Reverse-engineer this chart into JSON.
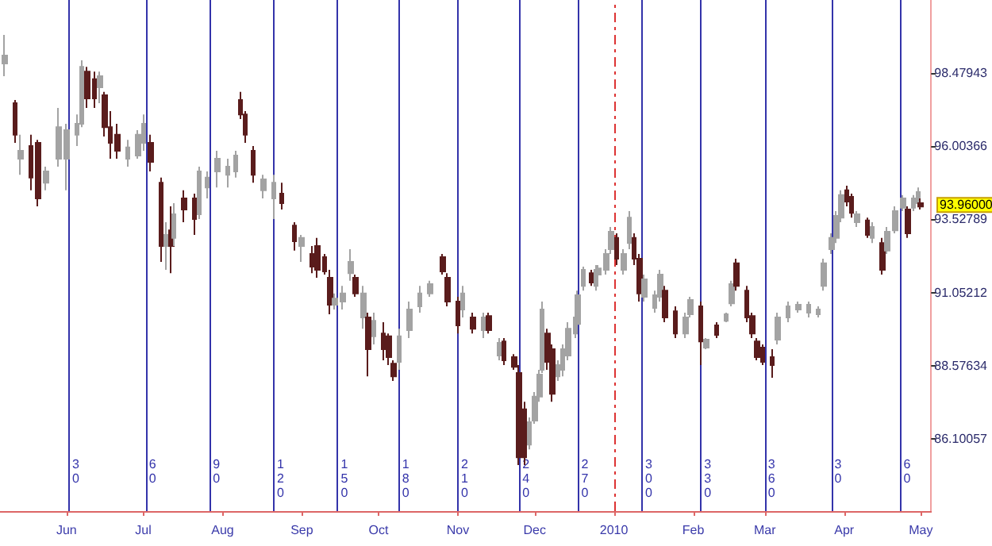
{
  "chart_data": {
    "type": "candlestick",
    "x": [
      "2009-05-08",
      "2009-05-12",
      "2009-05-14",
      "2009-05-18",
      "2009-05-21",
      "2009-05-24",
      "2009-05-29",
      "2009-06-01",
      "2009-06-05",
      "2009-06-07",
      "2009-06-09",
      "2009-06-12",
      "2009-06-14",
      "2009-06-16",
      "2009-06-18",
      "2009-06-21",
      "2009-06-25",
      "2009-06-29",
      "2009-07-01",
      "2009-07-04",
      "2009-07-08",
      "2009-07-10",
      "2009-07-12",
      "2009-07-13",
      "2009-07-17",
      "2009-07-21",
      "2009-07-23",
      "2009-07-26",
      "2009-07-30",
      "2009-08-03",
      "2009-08-06",
      "2009-08-08",
      "2009-08-10",
      "2009-08-13",
      "2009-08-17",
      "2009-08-21",
      "2009-08-24",
      "2009-08-29",
      "2009-09-01",
      "2009-09-05",
      "2009-09-07",
      "2009-09-10",
      "2009-09-12",
      "2009-09-14",
      "2009-09-17",
      "2009-09-20",
      "2009-09-22",
      "2009-09-25",
      "2009-09-27",
      "2009-09-29",
      "2009-10-03",
      "2009-10-05",
      "2009-10-07",
      "2009-10-09",
      "2009-10-13",
      "2009-10-17",
      "2009-10-21",
      "2009-10-26",
      "2009-10-28",
      "2009-11-01",
      "2009-11-03",
      "2009-11-07",
      "2009-11-11",
      "2009-11-13",
      "2009-11-17",
      "2009-11-19",
      "2009-11-23",
      "2009-11-25",
      "2009-11-27",
      "2009-11-29",
      "2009-12-01",
      "2009-12-03",
      "2009-12-04",
      "2009-12-06",
      "2009-12-08",
      "2009-12-10",
      "2009-12-12",
      "2009-12-14",
      "2009-12-17",
      "2009-12-18",
      "2009-12-20",
      "2009-12-23",
      "2009-12-25",
      "2009-12-26",
      "2009-12-29",
      "2009-12-31",
      "2010-01-02",
      "2010-01-05",
      "2010-01-07",
      "2010-01-09",
      "2010-01-11",
      "2010-01-13",
      "2010-01-17",
      "2010-01-19",
      "2010-01-21",
      "2010-01-25",
      "2010-01-29",
      "2010-01-31",
      "2010-02-04",
      "2010-02-06",
      "2010-02-10",
      "2010-02-14",
      "2010-02-16",
      "2010-02-18",
      "2010-02-22",
      "2010-02-24",
      "2010-02-26",
      "2010-02-28",
      "2010-03-04",
      "2010-03-06",
      "2010-03-10",
      "2010-03-14",
      "2010-03-18",
      "2010-03-22",
      "2010-03-24",
      "2010-03-27",
      "2010-03-29",
      "2010-03-31",
      "2010-04-02",
      "2010-04-04",
      "2010-04-06",
      "2010-04-10",
      "2010-04-12",
      "2010-04-16",
      "2010-04-18",
      "2010-04-21",
      "2010-04-24",
      "2010-04-26",
      "2010-04-28",
      "2010-04-30",
      "2010-05-01"
    ],
    "ohlc": [
      [
        98.8,
        99.77,
        98.37,
        99.07
      ],
      [
        97.46,
        97.57,
        96.12,
        96.39
      ],
      [
        95.58,
        96.39,
        95.04,
        95.85
      ],
      [
        96.01,
        96.39,
        94.51,
        94.94
      ],
      [
        96.12,
        96.22,
        93.97,
        94.24
      ],
      [
        94.77,
        95.31,
        94.51,
        95.15
      ],
      [
        95.58,
        97.3,
        95.31,
        96.65
      ],
      [
        95.58,
        96.76,
        94.51,
        96.55
      ],
      [
        96.39,
        97.08,
        96.01,
        96.76
      ],
      [
        96.76,
        98.91,
        96.65,
        98.69
      ],
      [
        98.53,
        98.69,
        97.3,
        97.62
      ],
      [
        98.27,
        98.53,
        97.3,
        97.62
      ],
      [
        98.0,
        98.53,
        97.46,
        98.37
      ],
      [
        97.73,
        97.84,
        96.33,
        96.65
      ],
      [
        96.65,
        97.19,
        95.58,
        96.12
      ],
      [
        96.39,
        96.76,
        95.58,
        95.85
      ],
      [
        95.58,
        96.22,
        95.31,
        95.96
      ],
      [
        95.69,
        96.55,
        95.58,
        96.39
      ],
      [
        96.12,
        97.08,
        95.85,
        96.76
      ],
      [
        96.12,
        96.39,
        95.15,
        95.47
      ],
      [
        94.77,
        94.94,
        92.09,
        92.63
      ],
      [
        92.63,
        93.43,
        91.82,
        93.0
      ],
      [
        93.16,
        93.97,
        91.71,
        92.63
      ],
      [
        92.9,
        94.08,
        92.63,
        93.7
      ],
      [
        94.24,
        94.51,
        93.43,
        93.86
      ],
      [
        94.24,
        94.4,
        93.0,
        93.54
      ],
      [
        93.7,
        95.31,
        93.54,
        95.15
      ],
      [
        94.61,
        95.15,
        94.24,
        94.94
      ],
      [
        95.15,
        95.85,
        94.61,
        95.58
      ],
      [
        95.04,
        95.58,
        94.61,
        95.31
      ],
      [
        95.15,
        95.85,
        94.94,
        95.69
      ],
      [
        97.57,
        97.84,
        96.92,
        97.08
      ],
      [
        97.08,
        97.19,
        96.12,
        96.39
      ],
      [
        95.85,
        96.01,
        94.77,
        95.04
      ],
      [
        94.51,
        95.04,
        94.24,
        94.88
      ],
      [
        94.24,
        95.04,
        93.54,
        94.77
      ],
      [
        94.4,
        94.77,
        93.86,
        94.08
      ],
      [
        93.32,
        93.43,
        92.47,
        92.79
      ],
      [
        92.63,
        93.0,
        92.09,
        92.9
      ],
      [
        92.36,
        92.63,
        91.71,
        91.93
      ],
      [
        92.63,
        92.9,
        91.55,
        91.82
      ],
      [
        92.25,
        92.36,
        91.66,
        91.77
      ],
      [
        91.55,
        91.82,
        90.32,
        90.64
      ],
      [
        90.64,
        91.02,
        90.48,
        90.85
      ],
      [
        90.75,
        91.28,
        90.48,
        91.02
      ],
      [
        91.71,
        92.52,
        91.45,
        92.09
      ],
      [
        91.55,
        91.66,
        90.91,
        91.02
      ],
      [
        90.21,
        91.28,
        89.83,
        91.02
      ],
      [
        90.21,
        90.37,
        88.22,
        89.14
      ],
      [
        89.57,
        90.37,
        89.3,
        90.1
      ],
      [
        89.67,
        90.05,
        88.76,
        89.14
      ],
      [
        89.57,
        89.67,
        88.6,
        88.87
      ],
      [
        88.65,
        88.76,
        88.06,
        88.22
      ],
      [
        88.71,
        89.83,
        88.44,
        89.57
      ],
      [
        89.78,
        90.75,
        89.51,
        90.48
      ],
      [
        90.59,
        91.28,
        90.37,
        91.02
      ],
      [
        91.02,
        91.45,
        90.91,
        91.34
      ],
      [
        92.25,
        92.36,
        91.66,
        91.77
      ],
      [
        91.55,
        91.71,
        90.59,
        90.75
      ],
      [
        90.75,
        90.91,
        89.67,
        89.94
      ],
      [
        90.48,
        91.28,
        90.21,
        91.02
      ],
      [
        90.21,
        90.37,
        89.67,
        89.83
      ],
      [
        89.78,
        90.37,
        89.51,
        90.21
      ],
      [
        90.26,
        90.37,
        89.67,
        89.78
      ],
      [
        88.92,
        89.51,
        88.76,
        89.35
      ],
      [
        89.4,
        89.51,
        88.6,
        88.76
      ],
      [
        88.87,
        88.97,
        88.44,
        88.54
      ],
      [
        88.33,
        88.6,
        85.22,
        85.48
      ],
      [
        87.1,
        87.36,
        85.22,
        85.48
      ],
      [
        85.91,
        86.83,
        85.75,
        86.67
      ],
      [
        86.72,
        87.69,
        86.61,
        87.53
      ],
      [
        87.53,
        88.44,
        87.36,
        88.28
      ],
      [
        88.44,
        90.75,
        88.33,
        90.48
      ],
      [
        89.67,
        89.83,
        88.44,
        88.71
      ],
      [
        89.14,
        89.3,
        87.36,
        87.63
      ],
      [
        88.22,
        88.76,
        88.06,
        88.6
      ],
      [
        88.44,
        89.3,
        88.22,
        89.14
      ],
      [
        88.92,
        90.05,
        88.76,
        89.83
      ],
      [
        89.67,
        90.37,
        89.51,
        90.21
      ],
      [
        89.99,
        91.12,
        89.83,
        90.96
      ],
      [
        91.28,
        91.93,
        91.12,
        91.82
      ],
      [
        91.71,
        91.82,
        91.28,
        91.39
      ],
      [
        91.28,
        91.98,
        91.12,
        91.82
      ],
      [
        91.66,
        91.98,
        91.55,
        91.87
      ],
      [
        91.82,
        92.52,
        91.66,
        92.36
      ],
      [
        92.52,
        93.27,
        92.36,
        93.11
      ],
      [
        92.9,
        93.06,
        91.98,
        92.2
      ],
      [
        91.82,
        92.52,
        91.66,
        92.36
      ],
      [
        92.73,
        93.81,
        92.52,
        93.59
      ],
      [
        92.9,
        93.06,
        91.98,
        92.2
      ],
      [
        92.2,
        92.36,
        90.75,
        91.02
      ],
      [
        90.91,
        91.66,
        90.75,
        91.5
      ],
      [
        90.53,
        91.12,
        90.37,
        90.96
      ],
      [
        90.91,
        91.82,
        90.75,
        91.66
      ],
      [
        91.12,
        91.28,
        90.05,
        90.21
      ],
      [
        90.42,
        90.59,
        89.51,
        89.67
      ],
      [
        89.67,
        90.37,
        89.51,
        90.21
      ],
      [
        90.32,
        90.91,
        90.21,
        90.8
      ],
      [
        90.59,
        90.75,
        88.6,
        89.4
      ],
      [
        89.19,
        89.51,
        89.14,
        89.46
      ],
      [
        89.94,
        90.05,
        89.51,
        89.62
      ],
      [
        90.1,
        90.37,
        90.05,
        90.32
      ],
      [
        90.69,
        91.45,
        90.59,
        91.34
      ],
      [
        92.04,
        92.2,
        91.12,
        91.28
      ],
      [
        91.12,
        91.28,
        90.05,
        90.21
      ],
      [
        90.26,
        90.37,
        89.51,
        89.67
      ],
      [
        89.4,
        89.51,
        88.76,
        88.87
      ],
      [
        89.19,
        89.3,
        88.6,
        88.71
      ],
      [
        88.87,
        89.14,
        88.17,
        88.6
      ],
      [
        89.46,
        90.37,
        89.3,
        90.21
      ],
      [
        90.21,
        90.75,
        90.05,
        90.59
      ],
      [
        90.48,
        90.75,
        90.37,
        90.64
      ],
      [
        90.37,
        90.75,
        90.21,
        90.64
      ],
      [
        90.32,
        90.59,
        90.21,
        90.48
      ],
      [
        91.28,
        92.2,
        91.12,
        92.04
      ],
      [
        92.52,
        93.06,
        92.36,
        92.9
      ],
      [
        92.9,
        93.81,
        92.73,
        93.65
      ],
      [
        93.59,
        94.51,
        93.43,
        94.35
      ],
      [
        94.51,
        94.67,
        93.97,
        94.13
      ],
      [
        94.29,
        94.4,
        93.59,
        93.75
      ],
      [
        93.43,
        93.81,
        93.27,
        93.7
      ],
      [
        93.49,
        93.59,
        92.9,
        93.0
      ],
      [
        92.9,
        93.43,
        92.73,
        93.27
      ],
      [
        92.73,
        92.9,
        91.66,
        91.82
      ],
      [
        92.47,
        93.27,
        92.36,
        93.11
      ],
      [
        93.16,
        93.97,
        93.06,
        93.81
      ],
      [
        93.92,
        94.35,
        93.81,
        94.24
      ],
      [
        93.86,
        93.97,
        92.9,
        93.06
      ],
      [
        93.92,
        94.35,
        93.81,
        94.24
      ],
      [
        94.08,
        94.61,
        93.97,
        94.45
      ],
      [
        94.08,
        94.24,
        93.86,
        93.96
      ]
    ],
    "xlim": [
      "2009-05-06",
      "2010-05-05"
    ],
    "xticks": [
      {
        "value": "2009-06-01",
        "label": "Jun"
      },
      {
        "value": "2009-07-01",
        "label": "Jul"
      },
      {
        "value": "2009-08-01",
        "label": "Aug"
      },
      {
        "value": "2009-09-01",
        "label": "Sep"
      },
      {
        "value": "2009-10-01",
        "label": "Oct"
      },
      {
        "value": "2009-11-01",
        "label": "Nov"
      },
      {
        "value": "2009-12-01",
        "label": "Dec"
      },
      {
        "value": "2010-01-01",
        "label": "2010"
      },
      {
        "value": "2010-02-01",
        "label": "Feb"
      },
      {
        "value": "2010-03-01",
        "label": "Mar"
      },
      {
        "value": "2010-04-01",
        "label": "Apr"
      },
      {
        "value": "2010-05-01",
        "label": "May"
      }
    ],
    "ylim": [
      83.66,
      100.95
    ],
    "yticks": [
      {
        "value": 86.10057,
        "label": "86.10057"
      },
      {
        "value": 88.57634,
        "label": "88.57634"
      },
      {
        "value": 91.05212,
        "label": "91.05212"
      },
      {
        "value": 93.52789,
        "label": "93.52789"
      },
      {
        "value": 96.00366,
        "label": "96.00366"
      },
      {
        "value": 98.47943,
        "label": "98.47943"
      }
    ],
    "ref_lines": [
      {
        "axis": "x",
        "value": "2009-06-02",
        "label": "30",
        "color": "#3333aa"
      },
      {
        "axis": "x",
        "value": "2009-07-02",
        "label": "60",
        "color": "#3333aa"
      },
      {
        "axis": "x",
        "value": "2009-07-27",
        "label": "90",
        "color": "#3333aa"
      },
      {
        "axis": "x",
        "value": "2009-08-21",
        "label": "120",
        "color": "#3333aa"
      },
      {
        "axis": "x",
        "value": "2009-09-15",
        "label": "150",
        "color": "#3333aa"
      },
      {
        "axis": "x",
        "value": "2009-10-09",
        "label": "180",
        "color": "#3333aa"
      },
      {
        "axis": "x",
        "value": "2009-11-01",
        "label": "210",
        "color": "#3333aa"
      },
      {
        "axis": "x",
        "value": "2009-11-25",
        "label": "240",
        "color": "#3333aa"
      },
      {
        "axis": "x",
        "value": "2009-12-18",
        "label": "270",
        "color": "#3333aa"
      },
      {
        "axis": "x",
        "value": "2010-01-01",
        "color": "#dd3333",
        "line_style": "dashed"
      },
      {
        "axis": "x",
        "value": "2010-01-12",
        "label": "300",
        "color": "#3333aa"
      },
      {
        "axis": "x",
        "value": "2010-02-04",
        "label": "330",
        "color": "#3333aa"
      },
      {
        "axis": "x",
        "value": "2010-03-01",
        "label": "360",
        "color": "#3333aa"
      },
      {
        "axis": "x",
        "value": "2010-03-27",
        "label": "30",
        "color": "#3333aa"
      },
      {
        "axis": "x",
        "value": "2010-04-23",
        "label": "60",
        "color": "#3333aa"
      }
    ],
    "annotations": [
      "93.96000"
    ],
    "colors": [
      "#a3a3a3",
      "#5a1c1c",
      "#a3a3a3",
      "#5a1c1c",
      "#5a1c1c",
      "#a3a3a3",
      "#a3a3a3",
      "#a3a3a3",
      "#a3a3a3",
      "#a3a3a3",
      "#5a1c1c",
      "#5a1c1c",
      "#a3a3a3",
      "#5a1c1c",
      "#5a1c1c",
      "#5a1c1c",
      "#a3a3a3",
      "#a3a3a3",
      "#a3a3a3",
      "#5a1c1c",
      "#5a1c1c",
      "#a3a3a3",
      "#5a1c1c",
      "#a3a3a3",
      "#5a1c1c",
      "#5a1c1c",
      "#a3a3a3",
      "#a3a3a3",
      "#a3a3a3",
      "#a3a3a3",
      "#a3a3a3",
      "#5a1c1c",
      "#5a1c1c",
      "#5a1c1c",
      "#a3a3a3",
      "#a3a3a3",
      "#5a1c1c",
      "#5a1c1c",
      "#a3a3a3",
      "#5a1c1c",
      "#5a1c1c",
      "#5a1c1c",
      "#5a1c1c",
      "#a3a3a3",
      "#a3a3a3",
      "#a3a3a3",
      "#5a1c1c",
      "#a3a3a3",
      "#5a1c1c",
      "#a3a3a3",
      "#5a1c1c",
      "#5a1c1c",
      "#5a1c1c",
      "#a3a3a3",
      "#a3a3a3",
      "#a3a3a3",
      "#a3a3a3",
      "#5a1c1c",
      "#5a1c1c",
      "#5a1c1c",
      "#a3a3a3",
      "#5a1c1c",
      "#a3a3a3",
      "#5a1c1c",
      "#a3a3a3",
      "#5a1c1c",
      "#5a1c1c",
      "#5a1c1c",
      "#5a1c1c",
      "#a3a3a3",
      "#a3a3a3",
      "#a3a3a3",
      "#a3a3a3",
      "#5a1c1c",
      "#5a1c1c",
      "#a3a3a3",
      "#a3a3a3",
      "#a3a3a3",
      "#a3a3a3",
      "#a3a3a3",
      "#a3a3a3",
      "#5a1c1c",
      "#a3a3a3",
      "#a3a3a3",
      "#a3a3a3",
      "#a3a3a3",
      "#5a1c1c",
      "#a3a3a3",
      "#a3a3a3",
      "#5a1c1c",
      "#5a1c1c",
      "#a3a3a3",
      "#a3a3a3",
      "#a3a3a3",
      "#5a1c1c",
      "#5a1c1c",
      "#a3a3a3",
      "#a3a3a3",
      "#5a1c1c",
      "#a3a3a3",
      "#5a1c1c",
      "#a3a3a3",
      "#a3a3a3",
      "#5a1c1c",
      "#5a1c1c",
      "#5a1c1c",
      "#5a1c1c",
      "#5a1c1c",
      "#5a1c1c",
      "#a3a3a3",
      "#a3a3a3",
      "#a3a3a3",
      "#a3a3a3",
      "#a3a3a3",
      "#a3a3a3",
      "#a3a3a3",
      "#a3a3a3",
      "#a3a3a3",
      "#5a1c1c",
      "#5a1c1c",
      "#a3a3a3",
      "#5a1c1c",
      "#a3a3a3",
      "#5a1c1c",
      "#a3a3a3",
      "#a3a3a3",
      "#a3a3a3",
      "#5a1c1c",
      "#a3a3a3",
      "#a3a3a3",
      "#5a1c1c"
    ],
    "grid": false
  }
}
